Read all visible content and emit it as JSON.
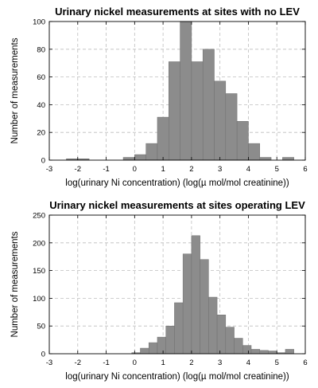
{
  "chart_data": [
    {
      "type": "bar",
      "title": "Urinary nickel measurements at sites with no LEV",
      "xlabel": "log(urinary Ni concentration) (log(µ mol/mol creatinine))",
      "ylabel": "Number of measurements",
      "xlim": [
        -3,
        6
      ],
      "ylim": [
        0,
        100
      ],
      "xticks": [
        -3,
        -2,
        -1,
        0,
        1,
        2,
        3,
        4,
        5,
        6
      ],
      "yticks": [
        0,
        20,
        40,
        60,
        80,
        100
      ],
      "grid": true,
      "bin_width": 0.4,
      "bin_left_edges": [
        -2.4,
        -2.0,
        -1.6,
        -1.2,
        -0.8,
        -0.4,
        0.0,
        0.4,
        0.8,
        1.2,
        1.6,
        2.0,
        2.4,
        2.8,
        3.2,
        3.6,
        4.0,
        4.4,
        4.8,
        5.2,
        5.6
      ],
      "values": [
        1,
        1,
        0,
        0,
        0,
        2,
        4,
        12,
        31,
        71,
        100,
        71,
        80,
        57,
        48,
        28,
        12,
        2,
        0,
        2,
        0
      ]
    },
    {
      "type": "bar",
      "title": "Urinary nickel measurements at sites operating LEV",
      "xlabel": "log(urinary Ni concentration) (log(µ mol/mol creatinine))",
      "ylabel": "Number of measurements",
      "xlim": [
        -3,
        6
      ],
      "ylim": [
        0,
        250
      ],
      "xticks": [
        -3,
        -2,
        -1,
        0,
        1,
        2,
        3,
        4,
        5,
        6
      ],
      "yticks": [
        0,
        50,
        100,
        150,
        200,
        250
      ],
      "grid": true,
      "bin_width": 0.3,
      "bin_left_edges": [
        -0.1,
        0.2,
        0.5,
        0.8,
        1.1,
        1.4,
        1.7,
        2.0,
        2.3,
        2.6,
        2.9,
        3.2,
        3.5,
        3.8,
        4.1,
        4.4,
        4.7,
        5.0,
        5.3
      ],
      "values": [
        2,
        10,
        20,
        30,
        50,
        92,
        180,
        213,
        170,
        102,
        70,
        48,
        28,
        15,
        8,
        6,
        5,
        2,
        8
      ]
    }
  ]
}
